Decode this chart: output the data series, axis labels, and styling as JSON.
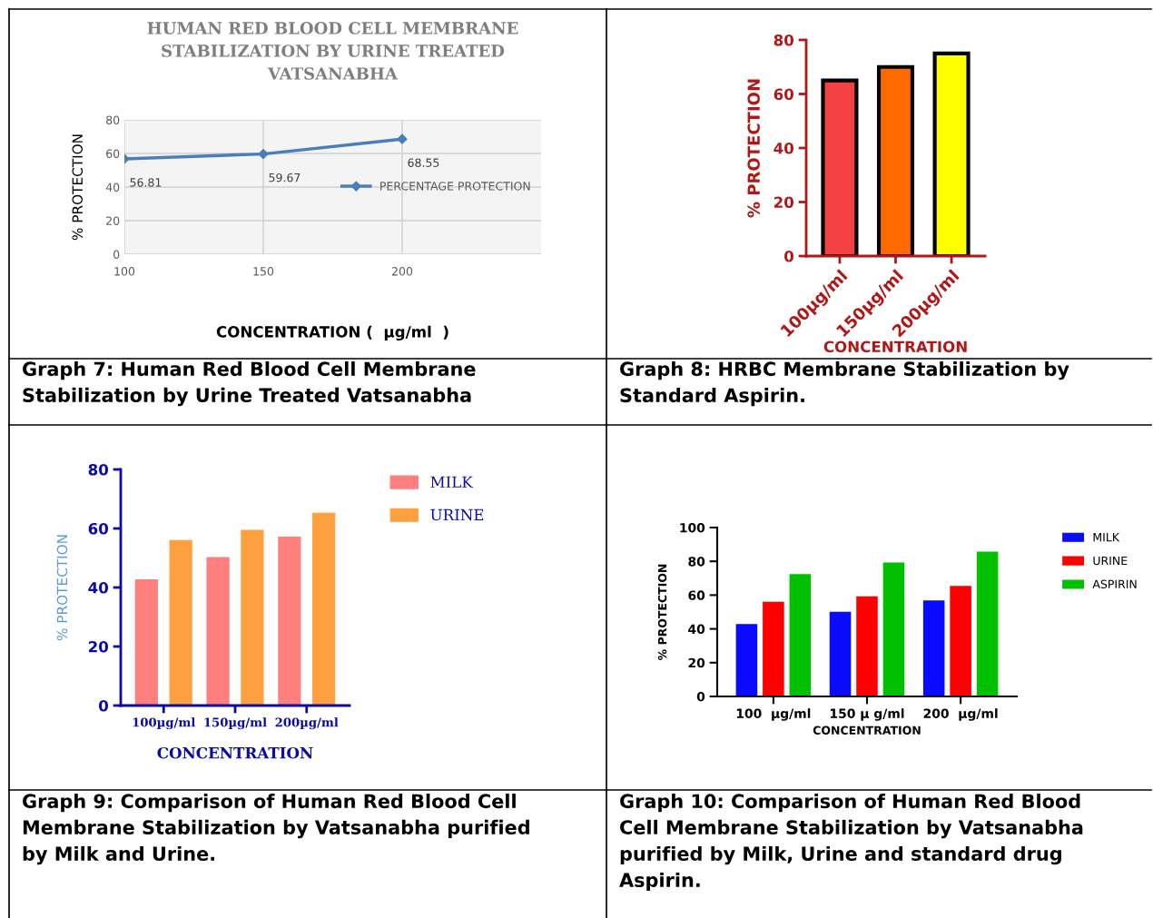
{
  "chart_data": [
    {
      "type": "line",
      "title": "HUMAN RED BLOOD CELL MEMBRANE\nSTABILIZATION BY URINE TREATED\nVATSANABHA",
      "xlabel": "CONCENTRATION (  µg/ml  )",
      "ylabel": "% PROTECTION",
      "x": [
        100,
        150,
        200
      ],
      "series": [
        {
          "name": "PERCENTAGE PROTECTION",
          "color": "#4a7ebb",
          "values": [
            56.81,
            59.67,
            68.55
          ]
        }
      ],
      "xlim": [
        100,
        250
      ],
      "xticks": [
        100,
        150,
        200
      ],
      "ylim": [
        0,
        80
      ],
      "yticks": [
        0,
        20,
        40,
        60,
        80
      ],
      "grid": true,
      "legend": "right",
      "marker": "diamond",
      "data_labels": true,
      "annotations": [
        "Graph 7: Human Red Blood Cell Membrane\nStabilization by Urine Treated Vatsanabha"
      ]
    },
    {
      "type": "bar",
      "xlabel": "CONCENTRATION",
      "ylabel": "% PROTECTION",
      "categories": [
        "100µg/ml",
        "150µg/ml",
        "200µg/ml"
      ],
      "values": [
        65,
        70,
        75
      ],
      "colors": [
        "#f44242",
        "#ff6a00",
        "#ffff00"
      ],
      "ylim": [
        0,
        80
      ],
      "yticks": [
        0,
        20,
        40,
        60,
        80
      ],
      "annotations": [
        "Graph 8: HRBC Membrane Stabilization by\nStandard Aspirin."
      ]
    },
    {
      "type": "bar",
      "xlabel": "CONCENTRATION",
      "ylabel": "% PROTECTION",
      "categories": [
        "100µg/ml",
        "150µg/ml",
        "200µg/ml"
      ],
      "series": [
        {
          "name": "MILK",
          "color": "#ff7f7f",
          "values": [
            42.8,
            50.3,
            57.2
          ]
        },
        {
          "name": "URINE",
          "color": "#ffa040",
          "values": [
            56.1,
            59.5,
            65.3
          ]
        }
      ],
      "ylim": [
        0,
        80
      ],
      "yticks": [
        0,
        20,
        40,
        60,
        80
      ],
      "legend": "top right",
      "annotations": [
        "Graph 9: Comparison of Human Red Blood Cell\nMembrane Stabilization by Vatsanabha purified\nby Milk and Urine."
      ]
    },
    {
      "type": "bar",
      "xlabel": "CONCENTRATION",
      "ylabel": "% PROTECTION",
      "categories": [
        "100  µg/ml",
        "150 µ g/ml",
        "200  µg/ml"
      ],
      "series": [
        {
          "name": "MILK",
          "color": "#0a0aff",
          "values": [
            42.9,
            50.2,
            56.9
          ]
        },
        {
          "name": "URINE",
          "color": "#ff0000",
          "values": [
            56.0,
            59.3,
            65.5
          ]
        },
        {
          "name": "ASPIRIN",
          "color": "#00c000",
          "values": [
            72.4,
            79.3,
            85.8
          ]
        }
      ],
      "ylim": [
        0,
        100
      ],
      "yticks": [
        0,
        20,
        40,
        60,
        80,
        100
      ],
      "legend": "top right",
      "annotations": [
        "Graph 10: Comparison of Human Red Blood\nCell Membrane Stabilization by Vatsanabha\npurified by Milk, Urine and standard drug\nAspirin."
      ]
    }
  ]
}
